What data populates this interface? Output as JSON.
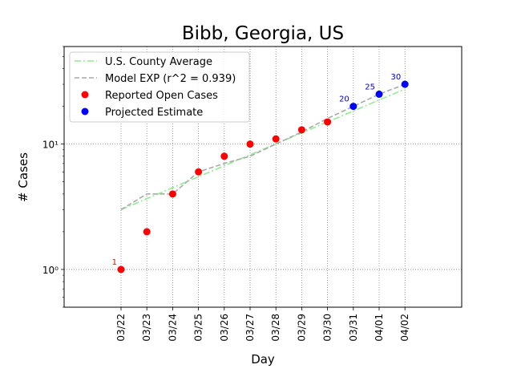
{
  "chart_data": {
    "type": "scatter",
    "title": "Bibb, Georgia, US",
    "xlabel": "Day",
    "ylabel": "# Cases",
    "yscale": "log",
    "ylim": [
      0.5,
      60
    ],
    "yticks": [
      {
        "value": 1,
        "label": "10⁰"
      },
      {
        "value": 10,
        "label": "10¹"
      }
    ],
    "grid": true,
    "legend_position": "top-left",
    "categories": [
      "03/22",
      "03/23",
      "03/24",
      "03/25",
      "03/26",
      "03/27",
      "03/28",
      "03/29",
      "03/30",
      "03/31",
      "04/01",
      "04/02"
    ],
    "series": [
      {
        "name": "U.S. County Average",
        "style": "dashdot",
        "color": "#90ee90",
        "points": [
          [
            "03/22",
            3
          ],
          [
            "04/02",
            27.5
          ]
        ]
      },
      {
        "name": "Model EXP (r^2 = 0.939)",
        "style": "dashed",
        "color": "#a9a9a9",
        "points": [
          [
            "03/22",
            3
          ],
          [
            "03/23",
            4
          ],
          [
            "03/24",
            4
          ],
          [
            "03/25",
            6
          ],
          [
            "03/26",
            7
          ],
          [
            "03/27",
            8
          ],
          [
            "03/28",
            10
          ],
          [
            "03/29",
            12.5
          ],
          [
            "03/30",
            16
          ],
          [
            "03/31",
            20
          ],
          [
            "04/01",
            25
          ],
          [
            "04/02",
            30
          ]
        ]
      },
      {
        "name": "Reported Open Cases",
        "style": "marker",
        "color": "#ff0000",
        "points": [
          [
            "03/22",
            1
          ],
          [
            "03/23",
            2
          ],
          [
            "03/24",
            4
          ],
          [
            "03/25",
            6
          ],
          [
            "03/26",
            8
          ],
          [
            "03/27",
            10
          ],
          [
            "03/28",
            11
          ],
          [
            "03/29",
            13
          ],
          [
            "03/30",
            15
          ]
        ]
      },
      {
        "name": "Projected Estimate",
        "style": "marker",
        "color": "#0000ff",
        "points": [
          [
            "03/31",
            20
          ],
          [
            "04/01",
            25
          ],
          [
            "04/02",
            30
          ]
        ]
      }
    ],
    "annotations": [
      {
        "x": "03/22",
        "y": 1,
        "text": "1",
        "color": "#ff0000"
      },
      {
        "x": "03/31",
        "y": 20,
        "text": "20",
        "color": "#0000cc"
      },
      {
        "x": "04/01",
        "y": 25,
        "text": "25",
        "color": "#0000cc"
      },
      {
        "x": "04/02",
        "y": 30,
        "text": "30",
        "color": "#0000cc"
      }
    ]
  }
}
